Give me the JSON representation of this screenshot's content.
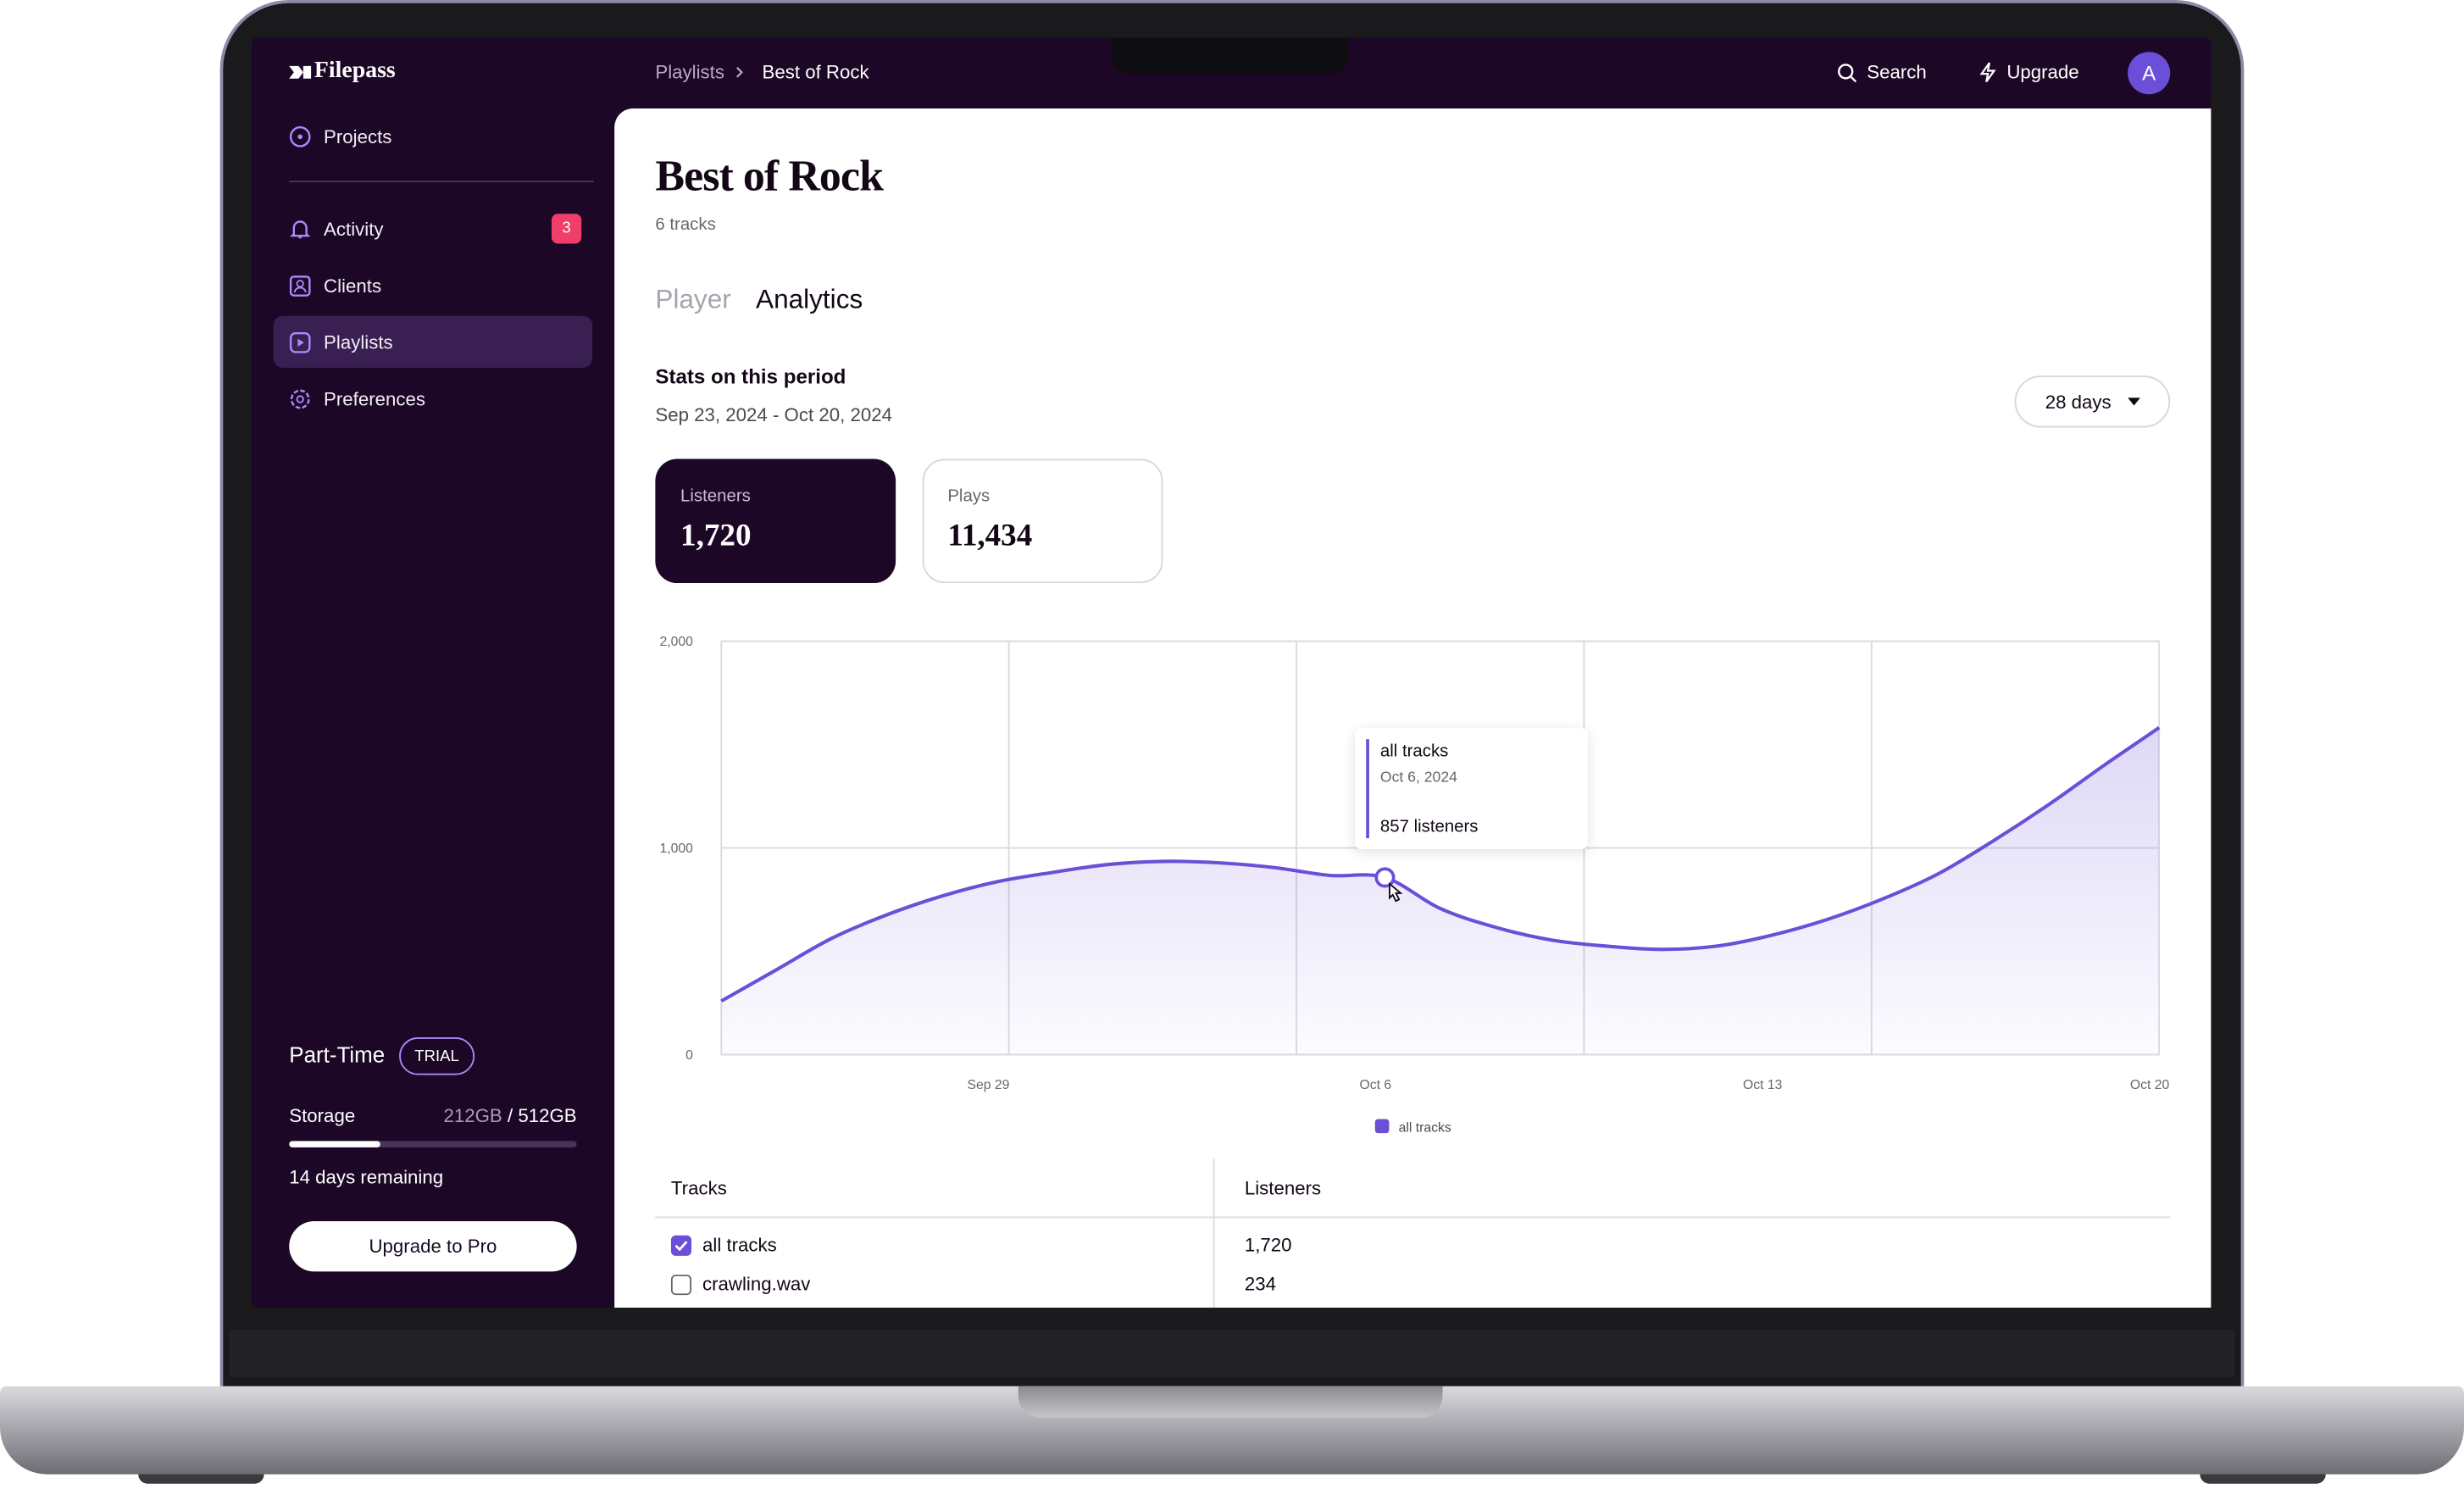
{
  "sidebar": {
    "brand": "Filepass",
    "nav": [
      "Projects",
      "Activity",
      "Clients",
      "Playlists",
      "Preferences"
    ],
    "activity_badge": 3,
    "plan": {
      "name": "Part-Time",
      "badge": "TRIAL",
      "storage_label": "Storage",
      "used": "212GB",
      "separator": "/",
      "total": "512GB",
      "remaining": "14 days remaining",
      "button": "Upgrade to Pro"
    }
  },
  "topbar": {
    "breadcrumb": [
      "Playlists",
      "Best of Rock"
    ],
    "search": "Search",
    "upgrade": "Upgrade",
    "avatar": "A"
  },
  "page": {
    "title": "Best of Rock",
    "subtitle": "6 tracks",
    "tabs": [
      "Player",
      "Analytics"
    ],
    "stats_title": "Stats on this period",
    "date_range": "Sep 23, 2024 - Oct 20, 2024",
    "period": "28 days",
    "cards": [
      {
        "label": "Listeners",
        "value": "1,720"
      },
      {
        "label": "Plays",
        "value": "11,434"
      }
    ]
  },
  "chart_data": {
    "type": "line",
    "categories": [
      null,
      null,
      null,
      null,
      null,
      "Sep 29",
      null,
      null,
      null,
      null,
      null,
      null,
      "Oct 6",
      null,
      null,
      null,
      null,
      null,
      null,
      "Oct 13",
      null,
      null,
      null,
      null,
      null,
      null,
      "Oct 20"
    ],
    "series": [
      {
        "name": "all tracks",
        "color": "#6b4fd8",
        "values": [
          259,
          411,
          563,
          677,
          768,
          837,
          882,
          920,
          935,
          928,
          905,
          867,
          857,
          707,
          616,
          555,
          525,
          509,
          525,
          578,
          654,
          753,
          874,
          1034,
          1209,
          1399,
          1582
        ]
      }
    ],
    "ylim": [
      0,
      2000
    ],
    "yticks": [
      0,
      {
        "value": 1000,
        "label": "1,000"
      },
      {
        "value": 2000,
        "label": "2,000"
      }
    ],
    "grid": true,
    "legend": "bottom",
    "tooltip": {
      "series": "all tracks",
      "date": "Oct 6, 2024",
      "text": "857 listeners"
    }
  },
  "table": {
    "headers": [
      "Tracks",
      "Listeners"
    ],
    "rows": [
      [
        "all tracks",
        "1,720"
      ],
      [
        "crawling.wav",
        "234"
      ]
    ],
    "checked": [
      true,
      false
    ]
  }
}
